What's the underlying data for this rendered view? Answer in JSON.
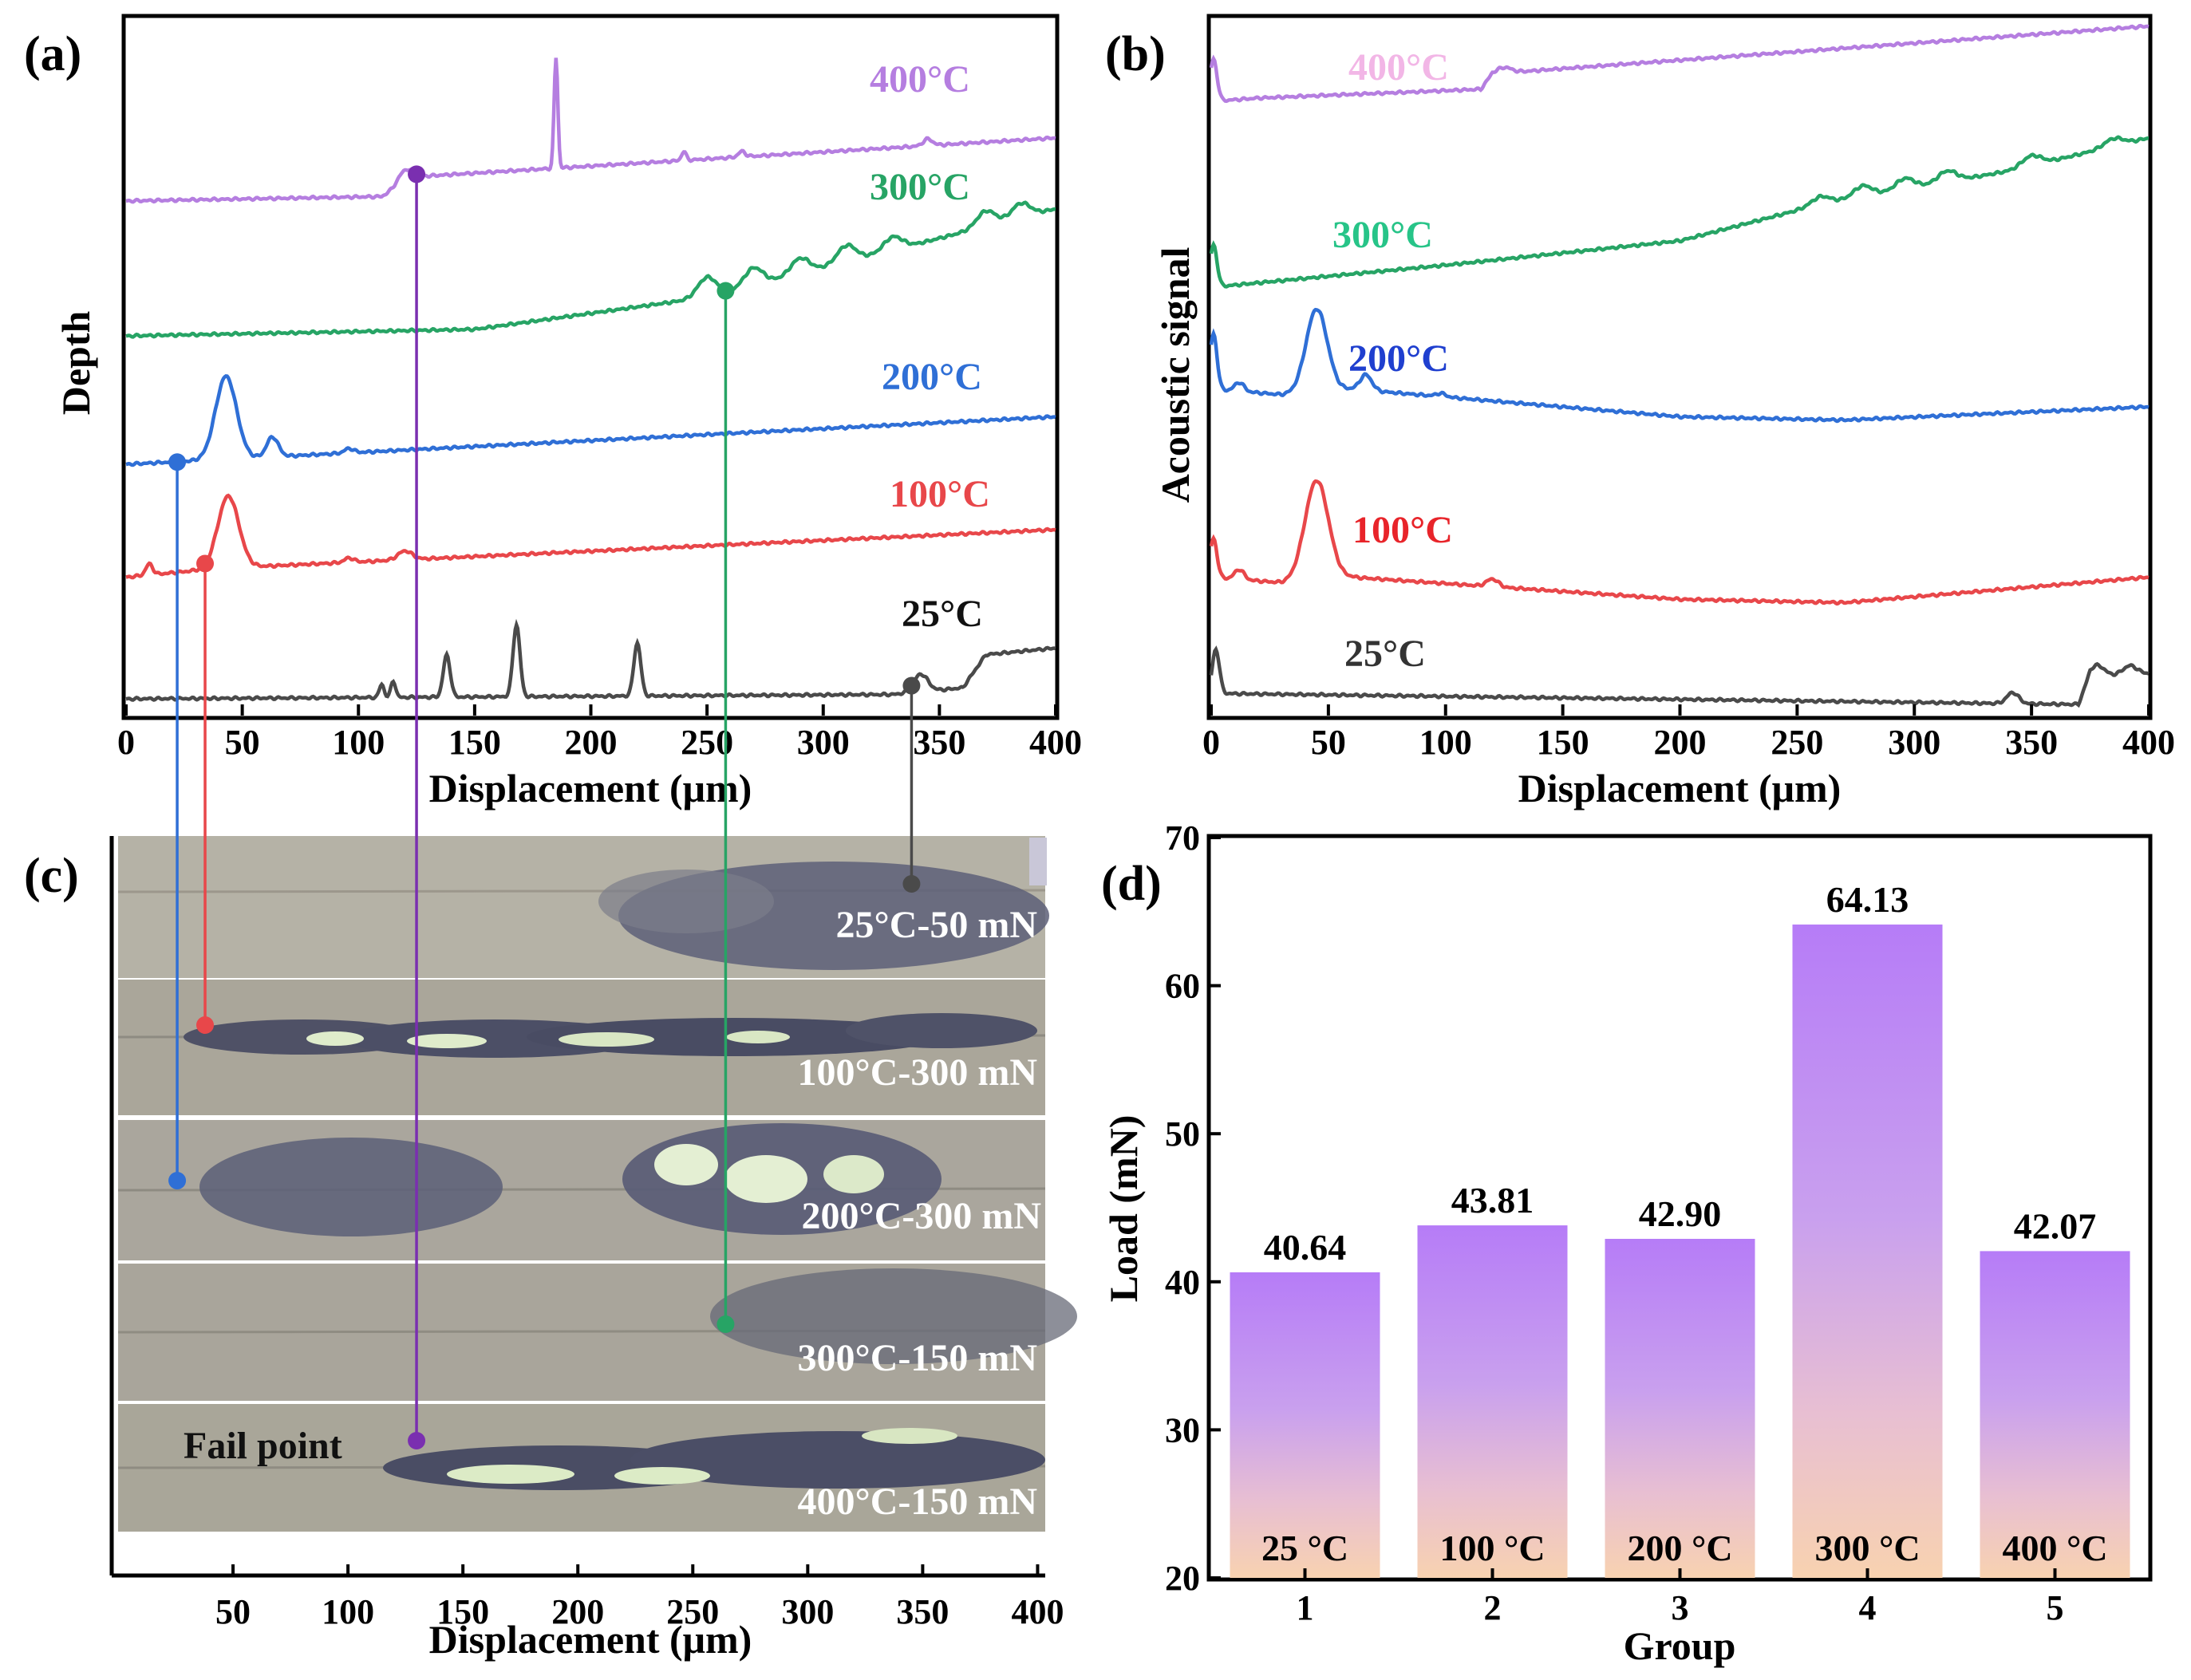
{
  "colors": {
    "t25": "#4a4a4a",
    "t100": "#e8474a",
    "t200": "#2f6fd6",
    "t300": "#27a465",
    "t400": "#b57ee0",
    "bar_top": "#b67cf7",
    "bar_bottom": "#f8d2b0",
    "fail_line_purple": "#7a2fb0",
    "axis": "#000000"
  },
  "chart_data": [
    {
      "panel": "(a)",
      "type": "line",
      "xlabel": "Displacement (μm)",
      "ylabel": "Depth",
      "xlim": [
        0,
        400
      ],
      "xticks": [
        "0",
        "50",
        "100",
        "150",
        "200",
        "250",
        "300",
        "350",
        "400"
      ],
      "series": [
        {
          "name": "25°C",
          "color_key": "t25",
          "base": 1.0,
          "trend": [
            [
              0,
              0
            ],
            [
              330,
              0.4
            ],
            [
              360,
              1.0
            ],
            [
              370,
              4.0
            ],
            [
              400,
              4.6
            ]
          ],
          "peaks": [
            [
              110,
              1.2,
              1
            ],
            [
              115,
              1.5,
              1
            ],
            [
              138,
              3.8,
              1.5
            ],
            [
              168,
              6.5,
              1.5
            ],
            [
              220,
              4.8,
              1.5
            ],
            [
              342,
              1.6,
              3
            ]
          ]
        },
        {
          "name": "100°C",
          "color_key": "t100",
          "base": 12.0,
          "trend": [
            [
              0,
              0
            ],
            [
              40,
              0.8
            ],
            [
              400,
              4.3
            ]
          ],
          "peaks": [
            [
              10,
              1.0,
              1.5
            ],
            [
              44,
              6.5,
              4.5
            ],
            [
              96,
              0.4,
              2
            ],
            [
              120,
              0.8,
              3
            ]
          ]
        },
        {
          "name": "200°C",
          "color_key": "t200",
          "base": 22.2,
          "trend": [
            [
              0,
              0
            ],
            [
              400,
              4.3
            ]
          ],
          "peaks": [
            [
              43,
              7.5,
              4.5
            ],
            [
              63,
              1.8,
              2.5
            ],
            [
              96,
              0.4,
              2
            ]
          ]
        },
        {
          "name": "300°C",
          "color_key": "t300",
          "base": 33.8,
          "trend": [
            [
              0,
              0
            ],
            [
              150,
              0.6
            ],
            [
              250,
              3.5
            ],
            [
              400,
              11.5
            ]
          ],
          "peaks": [
            [
              250,
              1.8,
              4
            ],
            [
              270,
              1.6,
              4
            ],
            [
              290,
              1.4,
              4
            ],
            [
              310,
              1.5,
              4
            ],
            [
              330,
              1.2,
              4
            ],
            [
              370,
              1.4,
              4
            ],
            [
              385,
              1.3,
              4
            ]
          ]
        },
        {
          "name": "400°C",
          "color_key": "t400",
          "base": 46.0,
          "trend": [
            [
              0,
              0
            ],
            [
              110,
              0.4
            ],
            [
              125,
              2.2
            ],
            [
              400,
              5.7
            ]
          ],
          "peaks": [
            [
              120,
              1.2,
              3
            ],
            [
              185,
              10.0,
              0.8
            ],
            [
              240,
              0.8,
              1
            ],
            [
              265,
              0.5,
              1.5
            ],
            [
              345,
              0.6,
              2
            ]
          ]
        }
      ],
      "labels": [
        {
          "text": "25°C",
          "color_key": "t25"
        },
        {
          "text": "100°C",
          "color_key": "t100"
        },
        {
          "text": "200°C",
          "color_key": "t200"
        },
        {
          "text": "300°C",
          "color_key": "t300"
        },
        {
          "text": "400°C",
          "color_key": "t400"
        }
      ],
      "fail_points": [
        {
          "series": "25°C",
          "x": 338,
          "color_key": "t25"
        },
        {
          "series": "100°C",
          "x": 34,
          "color_key": "t100"
        },
        {
          "series": "200°C",
          "x": 22,
          "color_key": "t200"
        },
        {
          "series": "300°C",
          "x": 258,
          "color_key": "t300"
        },
        {
          "series": "400°C",
          "x": 125,
          "color_key": "fail_line_purple"
        }
      ]
    },
    {
      "panel": "(b)",
      "type": "line",
      "xlabel": "Displacement (μm)",
      "ylabel": "Acoustic signal",
      "xlim": [
        0,
        400
      ],
      "xticks": [
        "0",
        "50",
        "100",
        "150",
        "200",
        "250",
        "300",
        "350",
        "400"
      ],
      "series": [
        {
          "name": "25°C",
          "color_key": "t25",
          "base": 1.5,
          "trend": [
            [
              0,
              0
            ],
            [
              370,
              -1.0
            ],
            [
              375,
              1.5
            ],
            [
              400,
              1.8
            ]
          ],
          "peaks": [
            [
              2,
              4.0,
              1.5
            ],
            [
              342,
              1.0,
              2.5
            ],
            [
              378,
              1.0,
              3
            ],
            [
              392,
              0.8,
              3
            ]
          ]
        },
        {
          "name": "100°C",
          "color_key": "t100",
          "base": 12.0,
          "trend": [
            [
              0,
              0
            ],
            [
              30,
              -0.5
            ],
            [
              60,
              0.0
            ],
            [
              200,
              -2.0
            ],
            [
              270,
              -2.3
            ],
            [
              400,
              0.0
            ]
          ],
          "peaks": [
            [
              1,
              3.5,
              1.5
            ],
            [
              12,
              0.9,
              2
            ],
            [
              45,
              9.0,
              5
            ],
            [
              120,
              0.7,
              2.5
            ]
          ]
        },
        {
          "name": "200°C",
          "color_key": "t200",
          "base": 29.0,
          "trend": [
            [
              0,
              0
            ],
            [
              30,
              -0.5
            ],
            [
              60,
              0.0
            ],
            [
              200,
              -2.5
            ],
            [
              270,
              -2.8
            ],
            [
              400,
              -1.6
            ]
          ],
          "peaks": [
            [
              1,
              5.0,
              1.5
            ],
            [
              12,
              0.8,
              2
            ],
            [
              45,
              7.5,
              4.5
            ],
            [
              66,
              1.4,
              2.5
            ],
            [
              98,
              0.3,
              2
            ]
          ]
        },
        {
          "name": "300°C",
          "color_key": "t300",
          "base": 38.2,
          "trend": [
            [
              0,
              0
            ],
            [
              100,
              2.0
            ],
            [
              200,
              4.2
            ],
            [
              260,
              7.5
            ],
            [
              340,
              10.5
            ],
            [
              400,
              13.5
            ]
          ],
          "peaks": [
            [
              1,
              3.8,
              1.5
            ],
            [
              260,
              0.7,
              4
            ],
            [
              278,
              1.0,
              4
            ],
            [
              296,
              1.0,
              4
            ],
            [
              314,
              1.0,
              4
            ],
            [
              350,
              0.9,
              4
            ],
            [
              385,
              0.7,
              4
            ]
          ]
        },
        {
          "name": "400°C",
          "color_key": "t400",
          "base": 55.0,
          "trend": [
            [
              0,
              0
            ],
            [
              20,
              0.3
            ],
            [
              115,
              1.1
            ],
            [
              120,
              2.5
            ],
            [
              400,
              6.8
            ]
          ],
          "peaks": [
            [
              1,
              3.8,
              1.5
            ],
            [
              125,
              0.5,
              3
            ]
          ]
        }
      ],
      "labels": [
        {
          "text": "25°C",
          "color_key": "t25"
        },
        {
          "text": "100°C",
          "color_key": "t100"
        },
        {
          "text": "200°C",
          "color_key": "t200"
        },
        {
          "text": "300°C",
          "color_key": "t300"
        },
        {
          "text": "400°C",
          "color_key": "t400"
        }
      ]
    },
    {
      "panel": "(c)",
      "type": "image-strips",
      "xlabel": "Displacement (μm)",
      "xlim": [
        0,
        400
      ],
      "xticks": [
        "50",
        "100",
        "150",
        "200",
        "250",
        "300",
        "350",
        "400"
      ],
      "strips": [
        {
          "label": "25°C-50 mN"
        },
        {
          "label": "100°C-300 mN"
        },
        {
          "label": "200°C-300 mN"
        },
        {
          "label": "300°C-150 mN"
        },
        {
          "label": "400°C-150 mN"
        }
      ],
      "annotation": "Fail point"
    },
    {
      "panel": "(d)",
      "type": "bar",
      "xlabel": "Group",
      "ylabel": "Load (mN)",
      "ylim": [
        20,
        70
      ],
      "yticks": [
        "20",
        "30",
        "40",
        "50",
        "60",
        "70"
      ],
      "categories": [
        "1",
        "2",
        "3",
        "4",
        "5"
      ],
      "values": [
        40.64,
        43.81,
        42.9,
        64.13,
        42.07
      ],
      "value_labels": [
        "40.64",
        "43.81",
        "42.90",
        "64.13",
        "42.07"
      ],
      "bar_labels": [
        "25 °C",
        "100 °C",
        "200 °C",
        "300 °C",
        "400 °C"
      ]
    }
  ]
}
